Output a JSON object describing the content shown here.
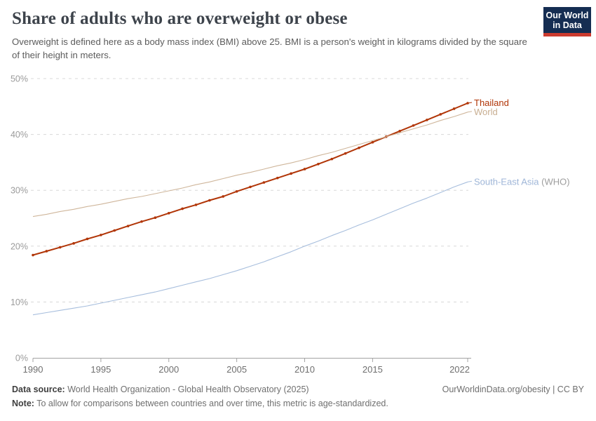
{
  "header": {
    "title": "Share of adults who are overweight or obese",
    "subtitle": "Overweight is defined here as a body mass index (BMI) above 25. BMI is a person's weight in kilograms divided by the square of their height in meters."
  },
  "logo": {
    "line1": "Our World",
    "line2": "in Data",
    "bg_color": "#152d52",
    "stripe_color": "#cc3b2f"
  },
  "chart_data": {
    "type": "line",
    "title": "Share of adults who are overweight or obese",
    "xlabel": "",
    "ylabel": "",
    "xlim": [
      1990,
      2022
    ],
    "ylim": [
      0,
      50
    ],
    "xticks": [
      1990,
      1995,
      2000,
      2005,
      2010,
      2015,
      2022
    ],
    "yticks": [
      0,
      10,
      20,
      30,
      40,
      50
    ],
    "ytick_suffix": "%",
    "grid": "dashed-horizontal",
    "legend_position": "line-end-labels",
    "x": [
      1990,
      1991,
      1992,
      1993,
      1994,
      1995,
      1996,
      1997,
      1998,
      1999,
      2000,
      2001,
      2002,
      2003,
      2004,
      2005,
      2006,
      2007,
      2008,
      2009,
      2010,
      2011,
      2012,
      2013,
      2014,
      2015,
      2016,
      2017,
      2018,
      2019,
      2020,
      2021,
      2022
    ],
    "series": [
      {
        "name": "Thailand",
        "label_main": "Thailand",
        "label_muted": "",
        "color": "#b13507",
        "label_color": "#b13507",
        "markers": true,
        "line_width": 2,
        "values": [
          18.4,
          19.1,
          19.8,
          20.5,
          21.3,
          22.0,
          22.8,
          23.6,
          24.4,
          25.1,
          25.9,
          26.7,
          27.4,
          28.2,
          28.9,
          29.8,
          30.6,
          31.4,
          32.2,
          33.0,
          33.8,
          34.7,
          35.6,
          36.6,
          37.6,
          38.6,
          39.6,
          40.6,
          41.6,
          42.6,
          43.6,
          44.6,
          45.6
        ]
      },
      {
        "name": "World",
        "label_main": "World",
        "label_muted": "",
        "color": "#cfb69b",
        "label_color": "#c8ae91",
        "markers": false,
        "line_width": 1.1,
        "values": [
          25.3,
          25.7,
          26.2,
          26.6,
          27.1,
          27.5,
          28.0,
          28.5,
          28.9,
          29.4,
          29.9,
          30.4,
          31.0,
          31.5,
          32.1,
          32.7,
          33.2,
          33.8,
          34.4,
          34.9,
          35.5,
          36.2,
          36.8,
          37.5,
          38.2,
          38.9,
          39.6,
          40.3,
          41.0,
          41.7,
          42.5,
          43.2,
          44.0
        ]
      },
      {
        "name": "South-East Asia (WHO)",
        "label_main": "South-East Asia",
        "label_muted": "(WHO)",
        "color": "#a7bedd",
        "label_color": "#9fb6d8",
        "markers": false,
        "line_width": 1.1,
        "values": [
          7.7,
          8.1,
          8.5,
          8.9,
          9.3,
          9.8,
          10.3,
          10.8,
          11.3,
          11.8,
          12.4,
          13.0,
          13.6,
          14.2,
          14.9,
          15.6,
          16.4,
          17.2,
          18.1,
          19.0,
          20.0,
          20.9,
          21.9,
          22.8,
          23.8,
          24.7,
          25.7,
          26.7,
          27.7,
          28.6,
          29.6,
          30.6,
          31.5
        ]
      }
    ],
    "muted_label_color": "#9e9e9e"
  },
  "footer": {
    "data_source_label": "Data source:",
    "data_source_text": " World Health Organization - Global Health Observatory (2025)",
    "license": "OurWorldinData.org/obesity | CC BY",
    "note_label": "Note:",
    "note_text": " To allow for comparisons between countries and over time, this metric is age-standardized."
  }
}
